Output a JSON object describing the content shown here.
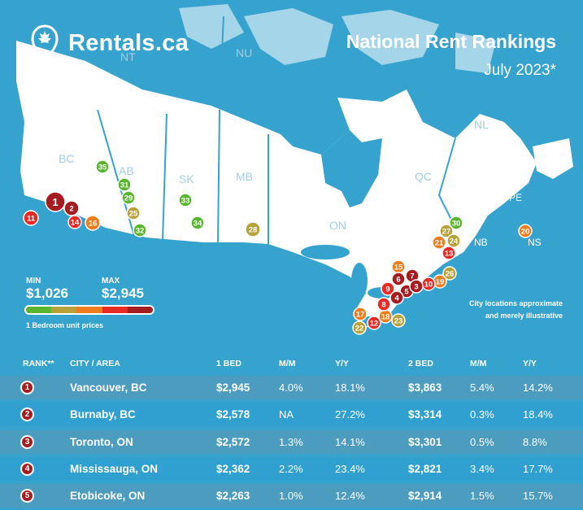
{
  "brand": {
    "name": "Rentals.ca",
    "icon": "maple-leaf-pin-icon"
  },
  "title": "National Rent Rankings",
  "subtitle": "July 2023*",
  "disclaimer": [
    "City locations approximate",
    "and merely illustrative"
  ],
  "legend": {
    "min_label": "MIN",
    "min_value": "$1,026",
    "max_label": "MAX",
    "max_value": "$2,945",
    "note": "1 Bedroom unit prices",
    "colors": [
      "#5ab52e",
      "#b7a23a",
      "#f07d1d",
      "#e82a25",
      "#a51d20"
    ]
  },
  "map_labels": [
    "BC",
    "AB",
    "SK",
    "MB",
    "ON",
    "QC",
    "NB",
    "NS",
    "PE",
    "NL",
    "NT",
    "NU"
  ],
  "colors": {
    "green": "#5ab52e",
    "olive": "#b7a23a",
    "orange": "#f07d1d",
    "red": "#e82a25",
    "darkred": "#a51d20",
    "land": "#ffffff",
    "water": "#36a3cf"
  },
  "markers": [
    {
      "n": "1",
      "c": "darkred"
    },
    {
      "n": "2",
      "c": "darkred"
    },
    {
      "n": "3",
      "c": "darkred"
    },
    {
      "n": "4",
      "c": "darkred"
    },
    {
      "n": "5",
      "c": "darkred"
    },
    {
      "n": "6",
      "c": "darkred"
    },
    {
      "n": "7",
      "c": "darkred"
    },
    {
      "n": "8",
      "c": "red"
    },
    {
      "n": "9",
      "c": "red"
    },
    {
      "n": "10",
      "c": "red"
    },
    {
      "n": "11",
      "c": "red"
    },
    {
      "n": "12",
      "c": "red"
    },
    {
      "n": "13",
      "c": "red"
    },
    {
      "n": "14",
      "c": "red"
    },
    {
      "n": "15",
      "c": "orange"
    },
    {
      "n": "16",
      "c": "orange"
    },
    {
      "n": "17",
      "c": "orange"
    },
    {
      "n": "18",
      "c": "orange"
    },
    {
      "n": "19",
      "c": "orange"
    },
    {
      "n": "20",
      "c": "orange"
    },
    {
      "n": "21",
      "c": "orange"
    },
    {
      "n": "22",
      "c": "olive"
    },
    {
      "n": "23",
      "c": "olive"
    },
    {
      "n": "24",
      "c": "olive"
    },
    {
      "n": "25",
      "c": "olive"
    },
    {
      "n": "26",
      "c": "olive"
    },
    {
      "n": "27",
      "c": "olive"
    },
    {
      "n": "28",
      "c": "olive"
    },
    {
      "n": "29",
      "c": "green"
    },
    {
      "n": "30",
      "c": "green"
    },
    {
      "n": "31",
      "c": "green"
    },
    {
      "n": "32",
      "c": "green"
    },
    {
      "n": "33",
      "c": "green"
    },
    {
      "n": "34",
      "c": "green"
    },
    {
      "n": "35",
      "c": "green"
    }
  ],
  "table": {
    "headers": {
      "rank": "RANK**",
      "city": "CITY / AREA",
      "bed1": "1 BED",
      "mm1": "M/M",
      "yy1": "Y/Y",
      "bed2": "2 BED",
      "mm2": "M/M",
      "yy2": "Y/Y"
    },
    "rows": [
      {
        "rank": "1",
        "city": "Vancouver, BC",
        "bed1": "$2,945",
        "mm1": "4.0%",
        "yy1": "18.1%",
        "bed2": "$3,863",
        "mm2": "5.4%",
        "yy2": "14.2%"
      },
      {
        "rank": "2",
        "city": "Burnaby, BC",
        "bed1": "$2,578",
        "mm1": "NA",
        "yy1": "27.2%",
        "bed2": "$3,314",
        "mm2": "0.3%",
        "yy2": "18.4%"
      },
      {
        "rank": "3",
        "city": "Toronto, ON",
        "bed1": "$2,572",
        "mm1": "1.3%",
        "yy1": "14.1%",
        "bed2": "$3,301",
        "mm2": "0.5%",
        "yy2": "8.8%"
      },
      {
        "rank": "4",
        "city": "Mississauga, ON",
        "bed1": "$2,362",
        "mm1": "2.2%",
        "yy1": "23.4%",
        "bed2": "$2,821",
        "mm2": "3.4%",
        "yy2": "17.7%"
      },
      {
        "rank": "5",
        "city": "Etobicoke, ON",
        "bed1": "$2,263",
        "mm1": "1.0%",
        "yy1": "12.4%",
        "bed2": "$2,914",
        "mm2": "1.5%",
        "yy2": "15.7%"
      }
    ]
  }
}
